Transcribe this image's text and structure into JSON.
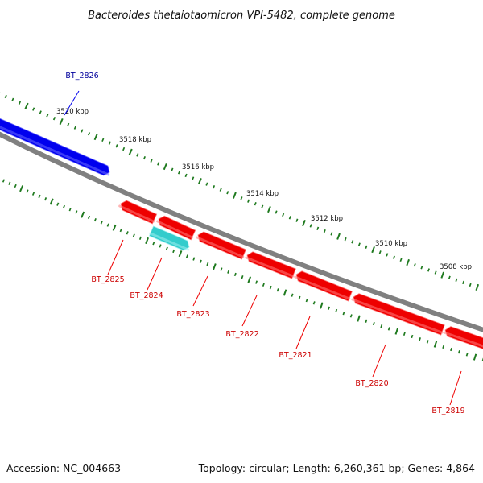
{
  "title": "Bacteroides thetaiotaomicron VPI-5482, complete genome",
  "footer": {
    "accession": "Accession: NC_004663",
    "summary": "Topology: circular; Length: 6,260,361 bp; Genes: 4,864"
  },
  "colors": {
    "backbone": "#808080",
    "tick": "#1f7a1f",
    "forward_gene": "#0000ee",
    "forward_label": "#00009c",
    "reverse_gene": "#ee0000",
    "reverse_label": "#cc0000",
    "other_gene": "#33cccc",
    "label_text": "#111111"
  },
  "scale_labels": [
    "3520 kbp",
    "3518 kbp",
    "3516 kbp",
    "3514 kbp",
    "3512 kbp",
    "3510 kbp",
    "3508 kbp"
  ],
  "genes": [
    {
      "id": "BT_2826",
      "strand": "forward"
    },
    {
      "id": "BT_2825",
      "strand": "reverse"
    },
    {
      "id": "BT_2824",
      "strand": "reverse"
    },
    {
      "id": "BT_2823",
      "strand": "reverse"
    },
    {
      "id": "BT_2822",
      "strand": "reverse"
    },
    {
      "id": "BT_2821",
      "strand": "reverse"
    },
    {
      "id": "BT_2820",
      "strand": "reverse"
    },
    {
      "id": "BT_2819",
      "strand": "reverse"
    }
  ]
}
